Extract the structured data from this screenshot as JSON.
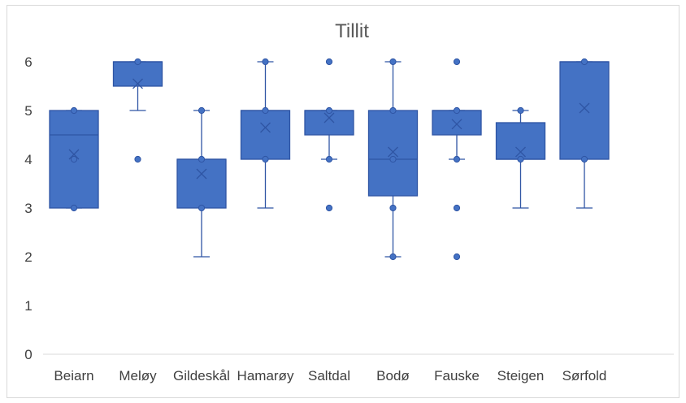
{
  "chart_data": {
    "type": "box",
    "title": "Tillit",
    "ylim": [
      0,
      6
    ],
    "yticks": [
      "0",
      "1",
      "2",
      "3",
      "4",
      "5",
      "6"
    ],
    "grid": false,
    "colors": {
      "box_fill": "#4472c4",
      "box_stroke": "#2f55a4",
      "axis": "#d9d9d9"
    },
    "categories": [
      "Beiarn",
      "Meløy",
      "Gildeskål",
      "Hamarøy",
      "Saltdal",
      "Bodø",
      "Fauske",
      "Steigen",
      "Sørfold"
    ],
    "boxes": [
      {
        "category": "Beiarn",
        "q1": 3,
        "median": 4.5,
        "q3": 5,
        "whisker_low": 3,
        "whisker_high": 5,
        "mean": 4.1,
        "inner_points": [
          3,
          4,
          5
        ],
        "outliers": []
      },
      {
        "category": "Meløy",
        "q1": 5.5,
        "median": 6,
        "q3": 6,
        "whisker_low": 5,
        "whisker_high": 6,
        "mean": 5.55,
        "inner_points": [
          6
        ],
        "outliers": [
          4
        ]
      },
      {
        "category": "Gildeskål",
        "q1": 3,
        "median": 4,
        "q3": 4,
        "whisker_low": 2,
        "whisker_high": 5,
        "mean": 3.7,
        "inner_points": [
          3,
          4,
          5
        ],
        "outliers": []
      },
      {
        "category": "Hamarøy",
        "q1": 4,
        "median": 5,
        "q3": 5,
        "whisker_low": 3,
        "whisker_high": 6,
        "mean": 4.65,
        "inner_points": [
          4,
          5,
          6
        ],
        "outliers": []
      },
      {
        "category": "Saltdal",
        "q1": 4.5,
        "median": 5,
        "q3": 5,
        "whisker_low": 4,
        "whisker_high": 5,
        "mean": 4.85,
        "inner_points": [
          4,
          5
        ],
        "outliers": [
          3,
          6
        ]
      },
      {
        "category": "Bodø",
        "q1": 3.25,
        "median": 4,
        "q3": 5,
        "whisker_low": 2,
        "whisker_high": 6,
        "mean": 4.15,
        "inner_points": [
          2,
          3,
          4,
          5,
          6
        ],
        "outliers": []
      },
      {
        "category": "Fauske",
        "q1": 4.5,
        "median": 5,
        "q3": 5,
        "whisker_low": 4,
        "whisker_high": 5,
        "mean": 4.72,
        "inner_points": [
          4,
          5
        ],
        "outliers": [
          2,
          3,
          6
        ]
      },
      {
        "category": "Steigen",
        "q1": 4,
        "median": 4,
        "q3": 4.75,
        "whisker_low": 3,
        "whisker_high": 5,
        "mean": 4.15,
        "inner_points": [
          4,
          5
        ],
        "outliers": []
      },
      {
        "category": "Sørfold",
        "q1": 4,
        "median": 6,
        "q3": 6,
        "whisker_low": 3,
        "whisker_high": 6,
        "mean": 5.05,
        "inner_points": [
          4,
          6
        ],
        "outliers": []
      }
    ]
  }
}
